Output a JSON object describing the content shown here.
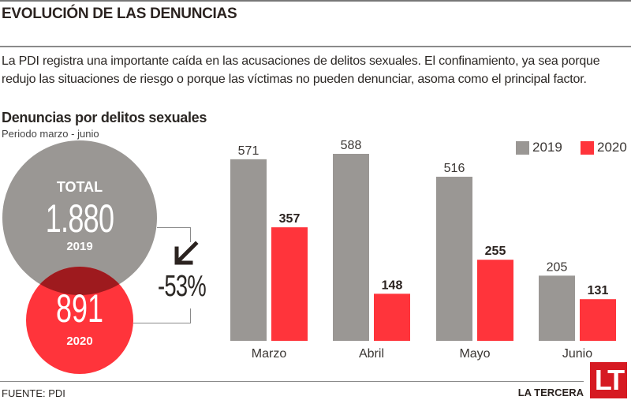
{
  "header": {
    "title": "EVOLUCIÓN DE LAS DENUNCIAS",
    "intro": "La PDI registra una importante caída en las acusaciones de delitos sexuales. El confinamiento, ya sea porque redujo las situaciones de riesgo o porque las víctimas no pueden denunciar, asoma como el principal factor."
  },
  "summary": {
    "total_label": "TOTAL",
    "total_2019": "1.880",
    "year_2019": "2019",
    "total_2020": "891",
    "year_2020": "2020",
    "change": "-53%",
    "change_icon": "arrow-down-left-icon"
  },
  "colors": {
    "y2019": "#9a9794",
    "y2020": "#ff343b",
    "brand": "#d61a22"
  },
  "chart_data": {
    "type": "bar",
    "title": "Denuncias por delitos sexuales",
    "subtitle": "Periodo marzo - junio",
    "categories": [
      "Marzo",
      "Abril",
      "Mayo",
      "Junio"
    ],
    "series": [
      {
        "name": "2019",
        "values": [
          571,
          588,
          516,
          205
        ],
        "labels": [
          "571",
          "588",
          "516",
          "205"
        ]
      },
      {
        "name": "2020",
        "values": [
          357,
          148,
          255,
          131
        ],
        "labels": [
          "357",
          "148",
          "255",
          "131"
        ]
      }
    ],
    "xlabel": "",
    "ylabel": "",
    "ylim": [
      0,
      588
    ],
    "grid": false,
    "legend": "top-right"
  },
  "footer": {
    "source": "FUENTE: PDI",
    "brand": "LA TERCERA",
    "logo": "LT"
  }
}
